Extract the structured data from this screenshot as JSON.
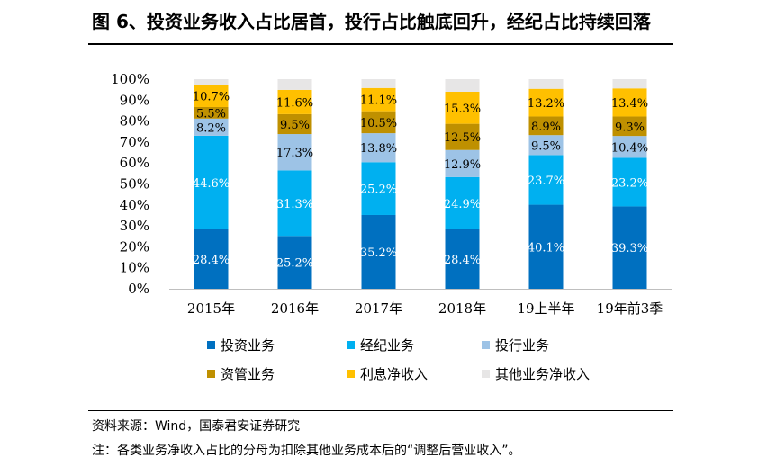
{
  "title": "图 6、投资业务收入占比居首，投行占比触底回升，经纪占比持续回落",
  "source": "资料来源：Wind，国泰君安证券研究",
  "note": "注：各类业务净收入占比的分母为扣除其他业务成本后的“调整后营业收入”。",
  "chart_data": {
    "type": "bar",
    "stacked": true,
    "categories": [
      "2015年",
      "2016年",
      "2017年",
      "2018年",
      "19上半年",
      "19年前3季"
    ],
    "y_ticks": [
      "0%",
      "10%",
      "20%",
      "30%",
      "40%",
      "50%",
      "60%",
      "70%",
      "80%",
      "90%",
      "100%"
    ],
    "ylim": [
      0,
      100
    ],
    "series": [
      {
        "name": "投资业务",
        "color": "#0070C0",
        "values": [
          28.4,
          25.2,
          35.2,
          28.4,
          40.1,
          39.3
        ],
        "labels": [
          "28.4%",
          "25.2%",
          "35.2%",
          "28.4%",
          "40.1%",
          "39.3%"
        ],
        "label_color": "#ffffff"
      },
      {
        "name": "经纪业务",
        "color": "#00B0F0",
        "values": [
          44.6,
          31.3,
          25.2,
          24.9,
          23.7,
          23.2
        ],
        "labels": [
          "44.6%",
          "31.3%",
          "25.2%",
          "24.9%",
          "23.7%",
          "23.2%"
        ],
        "label_color": "#ffffff"
      },
      {
        "name": "投行业务",
        "color": "#9DC3E6",
        "values": [
          8.2,
          17.3,
          13.8,
          12.9,
          9.5,
          10.4
        ],
        "labels": [
          "8.2%",
          "17.3%",
          "13.8%",
          "12.9%",
          "9.5%",
          "10.4%"
        ],
        "label_color": "#000000"
      },
      {
        "name": "资管业务",
        "color": "#BF9000",
        "values": [
          5.5,
          9.5,
          10.5,
          12.5,
          8.9,
          9.3
        ],
        "labels": [
          "5.5%",
          "9.5%",
          "10.5%",
          "12.5%",
          "8.9%",
          "9.3%"
        ],
        "label_color": "#000000"
      },
      {
        "name": "利息净收入",
        "color": "#FFC000",
        "values": [
          10.7,
          11.6,
          11.1,
          15.3,
          13.2,
          13.4
        ],
        "labels": [
          "10.7%",
          "11.6%",
          "11.1%",
          "15.3%",
          "13.2%",
          "13.4%"
        ],
        "label_color": "#000000"
      },
      {
        "name": "其他业务净收入",
        "color": "#E7E6E6",
        "values": [
          2.6,
          5.1,
          4.2,
          6.0,
          4.6,
          4.4
        ],
        "labels": [],
        "label_color": "#000000"
      }
    ],
    "legend_position": "bottom"
  }
}
